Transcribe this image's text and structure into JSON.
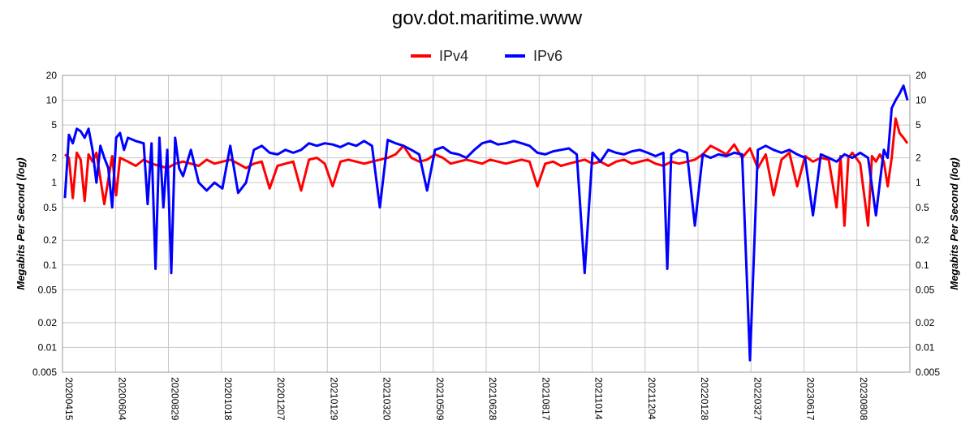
{
  "chart_data": {
    "type": "line",
    "title": "gov.dot.maritime.www",
    "ylabel": "Megabits Per Second (log)",
    "yscale": "log",
    "ylim": [
      0.005,
      20
    ],
    "yticks": [
      20,
      10,
      5,
      2,
      1,
      0.5,
      0.2,
      0.1,
      0.05,
      0.02,
      0.01,
      0.005
    ],
    "ytick_labels": [
      "20",
      "10",
      "5",
      "2",
      "1",
      "0.5",
      "0.2",
      "0.1",
      "0.05",
      "0.02",
      "0.01",
      "0.005"
    ],
    "x_tick_labels": [
      "20200415",
      "20200604",
      "20200829",
      "20201018",
      "20201207",
      "20210129",
      "20210320",
      "20210509",
      "20210628",
      "20210817",
      "20211014",
      "20211204",
      "20220128",
      "20220327",
      "20230617",
      "20230808"
    ],
    "grid": true,
    "legend_position": "top-center",
    "series": [
      {
        "name": "IPv4",
        "color": "#ff0000",
        "points": [
          [
            0.0,
            2.2
          ],
          [
            0.5,
            2.0
          ],
          [
            1.0,
            0.65
          ],
          [
            1.5,
            2.3
          ],
          [
            2.0,
            1.9
          ],
          [
            2.5,
            0.6
          ],
          [
            3.0,
            2.2
          ],
          [
            3.5,
            1.8
          ],
          [
            4.0,
            2.3
          ],
          [
            5.0,
            0.55
          ],
          [
            6.0,
            2.1
          ],
          [
            6.5,
            0.7
          ],
          [
            7.0,
            2.0
          ],
          [
            8.0,
            1.8
          ],
          [
            9.0,
            1.6
          ],
          [
            10.0,
            1.9
          ],
          [
            11.0,
            1.7
          ],
          [
            12.0,
            1.6
          ],
          [
            13.0,
            1.5
          ],
          [
            14.0,
            1.7
          ],
          [
            15.0,
            1.8
          ],
          [
            16.0,
            1.7
          ],
          [
            17.0,
            1.6
          ],
          [
            18.0,
            1.9
          ],
          [
            19.0,
            1.7
          ],
          [
            20.0,
            1.8
          ],
          [
            21.0,
            1.9
          ],
          [
            22.0,
            1.7
          ],
          [
            23.0,
            1.5
          ],
          [
            24.0,
            1.7
          ],
          [
            25.0,
            1.8
          ],
          [
            26.0,
            0.85
          ],
          [
            27.0,
            1.6
          ],
          [
            28.0,
            1.7
          ],
          [
            29.0,
            1.8
          ],
          [
            30.0,
            0.8
          ],
          [
            31.0,
            1.9
          ],
          [
            32.0,
            2.0
          ],
          [
            33.0,
            1.7
          ],
          [
            34.0,
            0.9
          ],
          [
            35.0,
            1.8
          ],
          [
            36.0,
            1.9
          ],
          [
            37.0,
            1.8
          ],
          [
            38.0,
            1.7
          ],
          [
            39.0,
            1.8
          ],
          [
            40.0,
            1.9
          ],
          [
            41.0,
            2.0
          ],
          [
            42.0,
            2.2
          ],
          [
            43.0,
            2.8
          ],
          [
            44.0,
            2.0
          ],
          [
            45.0,
            1.8
          ],
          [
            46.0,
            1.9
          ],
          [
            47.0,
            2.2
          ],
          [
            48.0,
            2.0
          ],
          [
            49.0,
            1.7
          ],
          [
            50.0,
            1.8
          ],
          [
            51.0,
            1.9
          ],
          [
            52.0,
            1.8
          ],
          [
            53.0,
            1.7
          ],
          [
            54.0,
            1.9
          ],
          [
            55.0,
            1.8
          ],
          [
            56.0,
            1.7
          ],
          [
            57.0,
            1.8
          ],
          [
            58.0,
            1.9
          ],
          [
            59.0,
            1.8
          ],
          [
            60.0,
            0.9
          ],
          [
            61.0,
            1.7
          ],
          [
            62.0,
            1.8
          ],
          [
            63.0,
            1.6
          ],
          [
            64.0,
            1.7
          ],
          [
            65.0,
            1.8
          ],
          [
            66.0,
            1.9
          ],
          [
            67.0,
            1.7
          ],
          [
            68.0,
            1.8
          ],
          [
            69.0,
            1.6
          ],
          [
            70.0,
            1.8
          ],
          [
            71.0,
            1.9
          ],
          [
            72.0,
            1.7
          ],
          [
            73.0,
            1.8
          ],
          [
            74.0,
            1.9
          ],
          [
            75.0,
            1.7
          ],
          [
            76.0,
            1.6
          ],
          [
            77.0,
            1.8
          ],
          [
            78.0,
            1.7
          ],
          [
            79.0,
            1.8
          ],
          [
            80.0,
            1.9
          ],
          [
            81.0,
            2.2
          ],
          [
            82.0,
            2.8
          ],
          [
            83.0,
            2.5
          ],
          [
            84.0,
            2.2
          ],
          [
            85.0,
            2.9
          ],
          [
            86.0,
            2.0
          ],
          [
            87.0,
            2.6
          ],
          [
            88.0,
            1.5
          ],
          [
            89.0,
            2.2
          ],
          [
            90.0,
            0.7
          ],
          [
            91.0,
            1.9
          ],
          [
            92.0,
            2.3
          ],
          [
            93.0,
            0.9
          ],
          [
            94.0,
            2.1
          ],
          [
            95.0,
            1.8
          ],
          [
            96.0,
            2.0
          ],
          [
            97.0,
            1.9
          ],
          [
            98.0,
            0.5
          ],
          [
            98.5,
            2.1
          ],
          [
            99.0,
            0.3
          ],
          [
            99.5,
            2.0
          ],
          [
            100.0,
            2.3
          ],
          [
            101.0,
            1.7
          ],
          [
            102.0,
            0.3
          ],
          [
            102.5,
            2.1
          ],
          [
            103.0,
            1.8
          ],
          [
            103.5,
            2.2
          ],
          [
            104.0,
            1.8
          ],
          [
            104.5,
            0.9
          ],
          [
            105.0,
            2.0
          ],
          [
            105.5,
            6.0
          ],
          [
            106.0,
            4.0
          ],
          [
            106.5,
            3.5
          ],
          [
            107.0,
            3.0
          ]
        ]
      },
      {
        "name": "IPv6",
        "color": "#0000ff",
        "points": [
          [
            0.0,
            0.65
          ],
          [
            0.5,
            3.8
          ],
          [
            1.0,
            3.0
          ],
          [
            1.5,
            4.5
          ],
          [
            2.0,
            4.2
          ],
          [
            2.5,
            3.5
          ],
          [
            3.0,
            4.5
          ],
          [
            3.5,
            2.5
          ],
          [
            4.0,
            1.0
          ],
          [
            4.5,
            2.8
          ],
          [
            5.0,
            2.0
          ],
          [
            5.5,
            1.5
          ],
          [
            6.0,
            0.5
          ],
          [
            6.5,
            3.5
          ],
          [
            7.0,
            4.0
          ],
          [
            7.5,
            2.5
          ],
          [
            8.0,
            3.5
          ],
          [
            9.0,
            3.2
          ],
          [
            10.0,
            3.0
          ],
          [
            10.5,
            0.55
          ],
          [
            11.0,
            3.0
          ],
          [
            11.5,
            0.09
          ],
          [
            12.0,
            3.5
          ],
          [
            12.5,
            0.5
          ],
          [
            13.0,
            2.5
          ],
          [
            13.5,
            0.08
          ],
          [
            14.0,
            3.5
          ],
          [
            14.5,
            1.5
          ],
          [
            15.0,
            1.2
          ],
          [
            16.0,
            2.5
          ],
          [
            17.0,
            1.0
          ],
          [
            18.0,
            0.8
          ],
          [
            19.0,
            1.0
          ],
          [
            20.0,
            0.85
          ],
          [
            21.0,
            2.8
          ],
          [
            22.0,
            0.75
          ],
          [
            23.0,
            1.0
          ],
          [
            24.0,
            2.5
          ],
          [
            25.0,
            2.8
          ],
          [
            26.0,
            2.3
          ],
          [
            27.0,
            2.2
          ],
          [
            28.0,
            2.5
          ],
          [
            29.0,
            2.3
          ],
          [
            30.0,
            2.5
          ],
          [
            31.0,
            3.0
          ],
          [
            32.0,
            2.8
          ],
          [
            33.0,
            3.0
          ],
          [
            34.0,
            2.9
          ],
          [
            35.0,
            2.7
          ],
          [
            36.0,
            3.0
          ],
          [
            37.0,
            2.8
          ],
          [
            38.0,
            3.2
          ],
          [
            39.0,
            2.8
          ],
          [
            40.0,
            0.5
          ],
          [
            41.0,
            3.3
          ],
          [
            42.0,
            3.0
          ],
          [
            43.0,
            2.8
          ],
          [
            44.0,
            2.5
          ],
          [
            45.0,
            2.2
          ],
          [
            46.0,
            0.8
          ],
          [
            47.0,
            2.5
          ],
          [
            48.0,
            2.7
          ],
          [
            49.0,
            2.3
          ],
          [
            50.0,
            2.2
          ],
          [
            51.0,
            2.0
          ],
          [
            52.0,
            2.5
          ],
          [
            53.0,
            3.0
          ],
          [
            54.0,
            3.2
          ],
          [
            55.0,
            2.9
          ],
          [
            56.0,
            3.0
          ],
          [
            57.0,
            3.2
          ],
          [
            58.0,
            3.0
          ],
          [
            59.0,
            2.8
          ],
          [
            60.0,
            2.3
          ],
          [
            61.0,
            2.2
          ],
          [
            62.0,
            2.4
          ],
          [
            63.0,
            2.5
          ],
          [
            64.0,
            2.6
          ],
          [
            65.0,
            2.2
          ],
          [
            66.0,
            0.08
          ],
          [
            67.0,
            2.3
          ],
          [
            68.0,
            1.8
          ],
          [
            69.0,
            2.5
          ],
          [
            70.0,
            2.3
          ],
          [
            71.0,
            2.2
          ],
          [
            72.0,
            2.4
          ],
          [
            73.0,
            2.5
          ],
          [
            74.0,
            2.3
          ],
          [
            75.0,
            2.1
          ],
          [
            76.0,
            2.3
          ],
          [
            76.5,
            0.09
          ],
          [
            77.0,
            2.2
          ],
          [
            78.0,
            2.5
          ],
          [
            79.0,
            2.3
          ],
          [
            80.0,
            0.3
          ],
          [
            81.0,
            2.2
          ],
          [
            82.0,
            2.0
          ],
          [
            83.0,
            2.2
          ],
          [
            84.0,
            2.1
          ],
          [
            85.0,
            2.3
          ],
          [
            86.0,
            2.2
          ],
          [
            87.0,
            0.007
          ],
          [
            88.0,
            2.5
          ],
          [
            89.0,
            2.8
          ],
          [
            90.0,
            2.5
          ],
          [
            91.0,
            2.3
          ],
          [
            92.0,
            2.5
          ],
          [
            93.0,
            2.2
          ],
          [
            94.0,
            2.0
          ],
          [
            95.0,
            0.4
          ],
          [
            96.0,
            2.2
          ],
          [
            97.0,
            2.0
          ],
          [
            98.0,
            1.8
          ],
          [
            99.0,
            2.2
          ],
          [
            100.0,
            2.0
          ],
          [
            101.0,
            2.3
          ],
          [
            102.0,
            2.0
          ],
          [
            103.0,
            0.4
          ],
          [
            103.5,
            1.0
          ],
          [
            104.0,
            2.5
          ],
          [
            104.5,
            2.0
          ],
          [
            105.0,
            8.0
          ],
          [
            105.5,
            10.0
          ],
          [
            106.0,
            12.0
          ],
          [
            106.5,
            15.0
          ],
          [
            107.0,
            10.0
          ]
        ]
      }
    ]
  }
}
